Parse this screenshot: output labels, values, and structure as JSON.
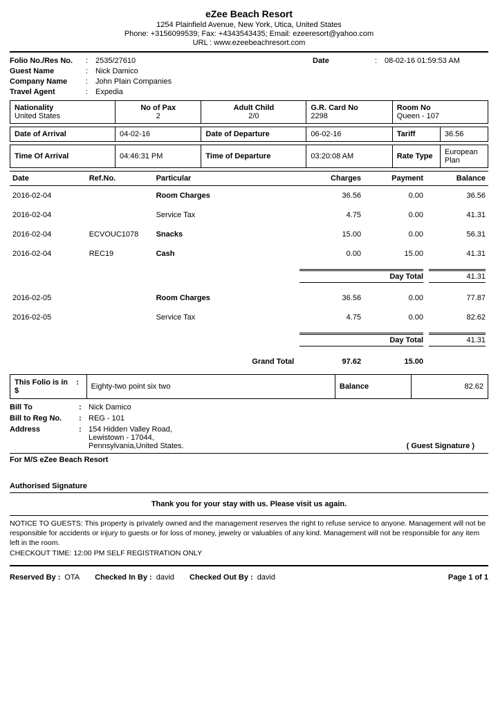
{
  "header": {
    "resort_name": "eZee Beach Resort",
    "address": "1254 Plainfield Avenue, New York, Utica, United States",
    "contact": "Phone: +3156099539; Fax: +4343543435; Email: ezeeresort@yahoo.com",
    "url": "URL : www.ezeebeachresort.com"
  },
  "info": {
    "folio_label": "Folio No./Res No.",
    "folio_value": "2535/27610",
    "date_label": "Date",
    "date_value": "08-02-16 01:59:53 AM",
    "guest_label": "Guest Name",
    "guest_value": "Nick  Damico",
    "company_label": "Company Name",
    "company_value": "John Plain Companies",
    "agent_label": "Travel Agent",
    "agent_value": "Expedia"
  },
  "grid1": {
    "nationality_label": "Nationality",
    "nationality_value": "United States",
    "pax_label": "No of Pax",
    "pax_value": "2",
    "adultchild_label": "Adult Child",
    "adultchild_value": "2/0",
    "grcard_label": "G.R. Card No",
    "grcard_value": "2298",
    "room_label": "Room No",
    "room_value": "Queen - 107"
  },
  "grid2": {
    "doa_label": "Date of Arrival",
    "doa_value": "04-02-16",
    "dod_label": "Date of Departure",
    "dod_value": "06-02-16",
    "tariff_label": "Tariff",
    "tariff_value": "36.56"
  },
  "grid3": {
    "toa_label": "Time Of Arrival",
    "toa_value": "04:46:31 PM",
    "tod_label": "Time of Departure",
    "tod_value": "03:20:08 AM",
    "rate_label": "Rate Type",
    "rate_value": "European Plan"
  },
  "ledger": {
    "headers": {
      "date": "Date",
      "ref": "Ref.No.",
      "particular": "Particular",
      "charges": "Charges",
      "payment": "Payment",
      "balance": "Balance"
    },
    "rows": [
      {
        "date": "2016-02-04",
        "ref": "",
        "particular": "Room Charges",
        "bold": true,
        "charges": "36.56",
        "payment": "0.00",
        "balance": "36.56"
      },
      {
        "date": "2016-02-04",
        "ref": "",
        "particular": "Service Tax",
        "bold": false,
        "charges": "4.75",
        "payment": "0.00",
        "balance": "41.31"
      },
      {
        "date": "2016-02-04",
        "ref": "ECVOUC1078",
        "particular": "Snacks",
        "bold": true,
        "charges": "15.00",
        "payment": "0.00",
        "balance": "56.31"
      },
      {
        "date": "2016-02-04",
        "ref": "REC19",
        "particular": "Cash",
        "bold": true,
        "charges": "0.00",
        "payment": "15.00",
        "balance": "41.31"
      }
    ],
    "day_total1_label": "Day Total",
    "day_total1_value": "41.31",
    "rows2": [
      {
        "date": "2016-02-05",
        "ref": "",
        "particular": "Room Charges",
        "bold": true,
        "charges": "36.56",
        "payment": "0.00",
        "balance": "77.87"
      },
      {
        "date": "2016-02-05",
        "ref": "",
        "particular": "Service Tax",
        "bold": false,
        "charges": "4.75",
        "payment": "0.00",
        "balance": "82.62"
      }
    ],
    "day_total2_label": "Day Total",
    "day_total2_value": "41.31",
    "grand_label": "Grand Total",
    "grand_charges": "97.62",
    "grand_payment": "15.00"
  },
  "folio_bal": {
    "this_folio_label": "This Folio is in",
    "currency": "$",
    "words": "Eighty-two point six two",
    "balance_label": "Balance",
    "balance_value": "82.62"
  },
  "bill": {
    "billto_label": "Bill To",
    "billto_value": "Nick  Damico",
    "reg_label": "Bill to Reg No.",
    "reg_value": "REG - 101",
    "addr_label": "Address",
    "addr_l1": "154 Hidden Valley Road,",
    "addr_l2": "Lewistown - 17044,",
    "addr_l3": "Pennsylvania,United States.",
    "guest_sig": "( Guest Signature )"
  },
  "resort_line": "For M/S eZee Beach Resort",
  "auth_sig": "Authorised Signature",
  "thanks": "Thank you for your stay with us. Please visit us again.",
  "notice": "NOTICE TO GUESTS: This property is privately owned and the management reserves the right to refuse service to anyone. Management will not be responsible for accidents or injury to guests or for loss of money, jewelry or valuables of any kind. Management will not be responsible for any item left in the room.",
  "checkout": "CHECKOUT TIME: 12:00 PM SELF REGISTRATION ONLY",
  "footer": {
    "reserved_label": "Reserved By :",
    "reserved_value": "OTA",
    "checkin_label": "Checked In By :",
    "checkin_value": "david",
    "checkout_label": "Checked Out By :",
    "checkout_value": "david",
    "page": "Page 1 of 1"
  },
  "style": {
    "col_widths_ledger": [
      "16%",
      "14%",
      "30%",
      "14%",
      "13%",
      "13%"
    ]
  }
}
